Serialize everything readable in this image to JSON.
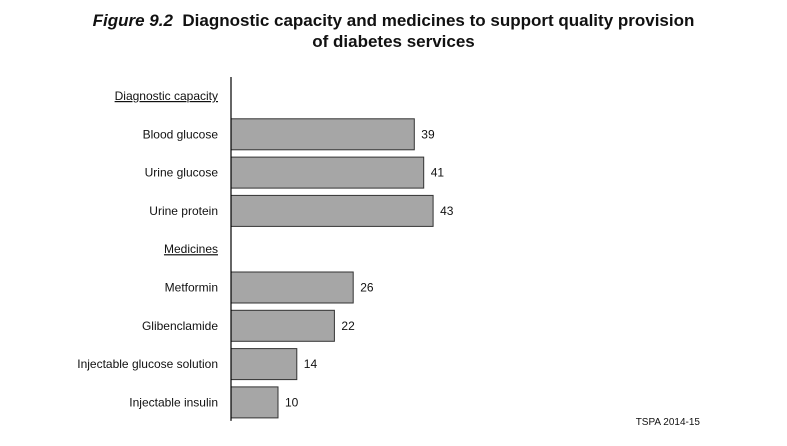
{
  "title": {
    "figure_label": "Figure 9.2",
    "line1": "Diagnostic capacity and medicines to support quality provision",
    "line2": "of diabetes services"
  },
  "source": "TSPA 2014-15",
  "colors": {
    "bar_fill": "#a6a6a6",
    "bar_stroke": "#333333",
    "axis": "#000000"
  },
  "chart_data": {
    "type": "bar",
    "orientation": "horizontal",
    "title": "Diagnostic capacity and medicines to support quality provision of diabetes services",
    "groups": [
      {
        "heading": "Diagnostic capacity",
        "categories": [
          "Blood glucose",
          "Urine glucose",
          "Urine protein"
        ],
        "values": [
          39,
          41,
          43
        ]
      },
      {
        "heading": "Medicines",
        "categories": [
          "Metformin",
          "Glibenclamide",
          "Injectable glucose solution",
          "Injectable insulin"
        ],
        "values": [
          26,
          22,
          14,
          10
        ]
      }
    ],
    "xlim": [
      0,
      100
    ],
    "grid": false,
    "data_labels": true
  }
}
